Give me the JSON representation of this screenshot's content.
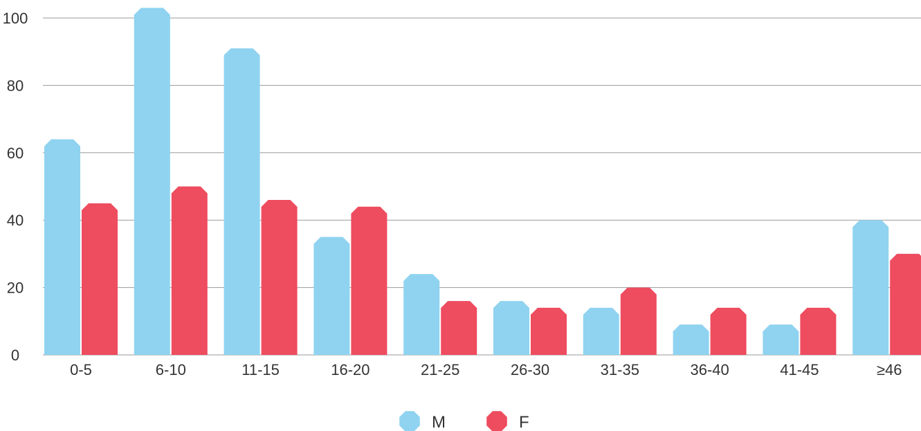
{
  "chart_data": {
    "type": "bar",
    "title": "",
    "xlabel": "",
    "ylabel": "",
    "categories": [
      "0-5",
      "6-10",
      "11-15",
      "16-20",
      "21-25",
      "26-30",
      "31-35",
      "36-40",
      "41-45",
      "≥46"
    ],
    "series": [
      {
        "name": "M",
        "color": "#8fd3f0",
        "values": [
          64,
          103,
          91,
          35,
          24,
          16,
          14,
          9,
          9,
          40
        ]
      },
      {
        "name": "F",
        "color": "#ee4c5f",
        "values": [
          45,
          50,
          46,
          44,
          16,
          14,
          20,
          14,
          14,
          30
        ]
      }
    ],
    "ylim": [
      0,
      100
    ],
    "yticks": [
      0,
      20,
      40,
      60,
      80,
      100
    ],
    "grid": true,
    "legend": "bottom-center"
  }
}
